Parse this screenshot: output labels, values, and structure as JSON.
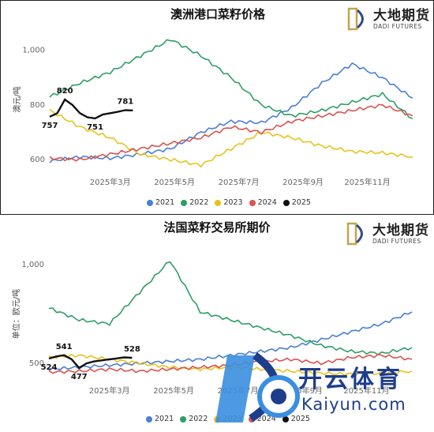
{
  "brand": {
    "name_cn": "大地期货",
    "name_en": "DADI FUTURES"
  },
  "watermark": {
    "cn": "开云体育",
    "en": "Kaiyun.com"
  },
  "colors": {
    "2021": "#4a7fd4",
    "2022": "#2e9e66",
    "2023": "#e9c31a",
    "2024": "#d9534f",
    "2025": "#111111"
  },
  "chart_data": [
    {
      "type": "line",
      "title": "澳洲港口菜籽价格",
      "ylabel": "澳元/吨",
      "ylim": [
        560,
        1080
      ],
      "yticks": [
        600,
        800,
        1000
      ],
      "ytick_labels": [
        "600",
        "800",
        "1,000"
      ],
      "x": [
        0,
        4,
        8,
        12,
        16,
        20,
        24,
        28,
        32,
        36,
        40,
        44,
        48
      ],
      "xticks": [
        {
          "pos": 8,
          "label": "2025年3月"
        },
        {
          "pos": 16.5,
          "label": "2025年5月"
        },
        {
          "pos": 25,
          "label": "2025年7月"
        },
        {
          "pos": 33.5,
          "label": "2025年9月"
        },
        {
          "pos": 42,
          "label": "2025年11月"
        }
      ],
      "series": [
        {
          "name": "2021",
          "values": [
            595,
            610,
            605,
            620,
            640,
            700,
            740,
            735,
            790,
            880,
            950,
            900,
            825
          ]
        },
        {
          "name": "2022",
          "values": [
            830,
            880,
            920,
            980,
            1040,
            980,
            900,
            800,
            760,
            780,
            810,
            840,
            750
          ]
        },
        {
          "name": "2023",
          "values": [
            780,
            720,
            680,
            620,
            600,
            580,
            640,
            700,
            680,
            650,
            630,
            625,
            610
          ]
        },
        {
          "name": "2024",
          "values": [
            605,
            600,
            620,
            640,
            660,
            680,
            720,
            700,
            740,
            760,
            780,
            800,
            760
          ]
        },
        {
          "name": "2025",
          "x": [
            0,
            1,
            2,
            3,
            4,
            5,
            6,
            7,
            8,
            9,
            10,
            11
          ],
          "values": [
            757,
            770,
            820,
            800,
            770,
            755,
            751,
            765,
            770,
            775,
            781,
            780
          ]
        }
      ],
      "annotations": [
        {
          "label": "757",
          "x": 0,
          "y": 757
        },
        {
          "label": "820",
          "x": 2,
          "y": 820
        },
        {
          "label": "751",
          "x": 6,
          "y": 751
        },
        {
          "label": "781",
          "x": 10,
          "y": 781
        }
      ],
      "legend": [
        "2021",
        "2022",
        "2023",
        "2024",
        "2025"
      ],
      "legend_position": "bottom"
    },
    {
      "type": "line",
      "title": "法国菜籽交易所期价",
      "ylabel": "单位：欧元/吨",
      "ylim": [
        420,
        1080
      ],
      "yticks": [
        500,
        1000
      ],
      "ytick_labels": [
        "500",
        "1,000"
      ],
      "x": [
        0,
        4,
        8,
        12,
        16,
        20,
        24,
        28,
        32,
        36,
        40,
        44,
        48
      ],
      "xticks": [
        {
          "pos": 8,
          "label": "2025年3月"
        },
        {
          "pos": 16.5,
          "label": "2025年5月"
        },
        {
          "pos": 25,
          "label": "2025年7月"
        },
        {
          "pos": 33.5,
          "label": "2025年9月"
        },
        {
          "pos": 42,
          "label": "2025年11月"
        }
      ],
      "series": [
        {
          "name": "2021",
          "values": [
            470,
            480,
            490,
            500,
            510,
            520,
            540,
            560,
            580,
            620,
            660,
            700,
            760
          ]
        },
        {
          "name": "2022",
          "values": [
            780,
            720,
            700,
            860,
            1020,
            760,
            720,
            680,
            640,
            590,
            560,
            550,
            580
          ]
        },
        {
          "name": "2023",
          "values": [
            530,
            540,
            520,
            500,
            480,
            470,
            480,
            470,
            460,
            450,
            445,
            450,
            460
          ]
        },
        {
          "name": "2024",
          "values": [
            455,
            460,
            470,
            460,
            470,
            480,
            490,
            510,
            520,
            500,
            530,
            540,
            520
          ]
        },
        {
          "name": "2025",
          "x": [
            0,
            1,
            2,
            3,
            4,
            5,
            6,
            7,
            8,
            9,
            10,
            11
          ],
          "values": [
            524,
            535,
            541,
            520,
            477,
            500,
            510,
            515,
            520,
            525,
            530,
            528
          ]
        }
      ],
      "annotations": [
        {
          "label": "524",
          "x": 0,
          "y": 524
        },
        {
          "label": "541",
          "x": 2,
          "y": 541
        },
        {
          "label": "477",
          "x": 4,
          "y": 477
        },
        {
          "label": "528",
          "x": 11,
          "y": 528
        }
      ],
      "legend": [
        "2021",
        "2022",
        "2023",
        "2024",
        "2025"
      ],
      "legend_position": "bottom"
    }
  ]
}
